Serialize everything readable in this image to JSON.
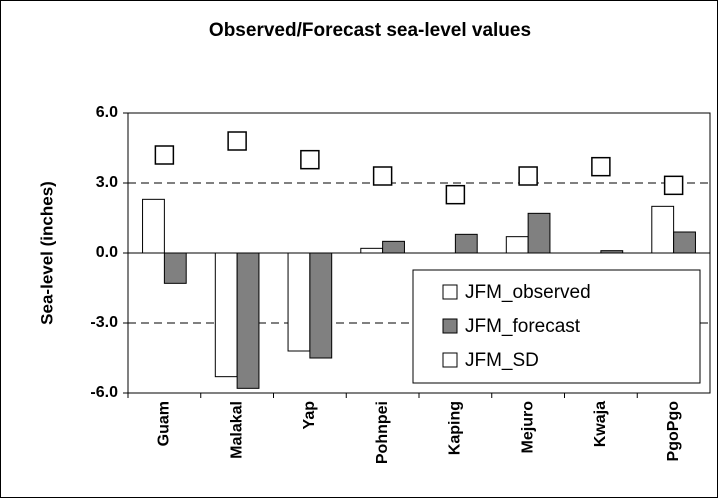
{
  "chart_data": {
    "type": "bar",
    "title": "Observed/Forecast sea-level values",
    "y_label": "Sea-level (inches)",
    "categories": [
      "Guam",
      "Malakal",
      "Yap",
      "Pohnpei",
      "Kaping",
      "Mejuro",
      "Kwaja",
      "PgoPgo"
    ],
    "series": [
      {
        "name": "JFM_observed",
        "color": "#ffffff",
        "mark": "bar",
        "values": [
          2.3,
          -5.3,
          -4.2,
          0.2,
          null,
          0.7,
          null,
          2.0
        ]
      },
      {
        "name": "JFM_forecast",
        "color": "#808080",
        "mark": "bar",
        "values": [
          -1.3,
          -5.8,
          -4.5,
          0.5,
          0.8,
          1.7,
          0.1,
          0.9
        ]
      },
      {
        "name": "JFM_SD",
        "color": "#ffffff",
        "mark": "square",
        "values": [
          4.2,
          4.8,
          4.0,
          3.3,
          2.5,
          3.3,
          3.7,
          2.9
        ]
      }
    ],
    "ylim": [
      -6,
      6
    ],
    "yticks": [
      {
        "value": -6,
        "label": "-6.0"
      },
      {
        "value": -3,
        "label": "-3.0"
      },
      {
        "value": 0,
        "label": "0.0"
      },
      {
        "value": 3,
        "label": "3.0"
      },
      {
        "value": 6,
        "label": "6.0"
      }
    ],
    "grid": true,
    "legend": "lower right"
  }
}
